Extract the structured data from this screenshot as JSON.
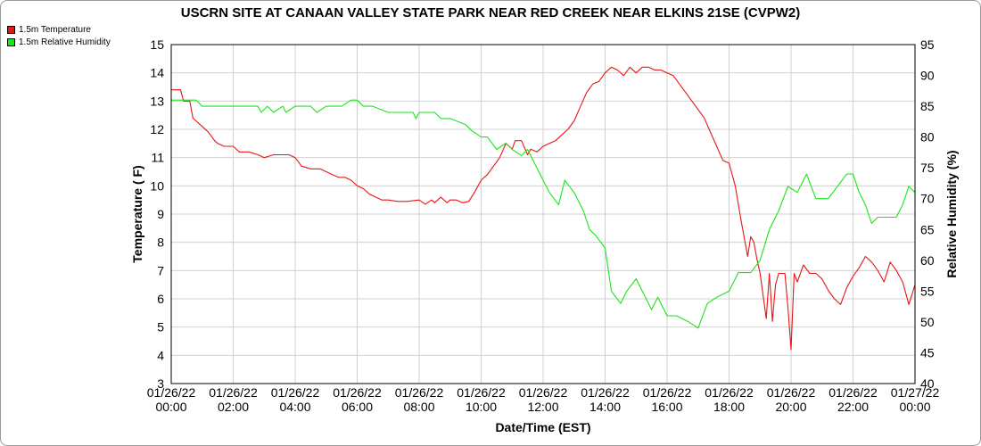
{
  "chart_data": {
    "type": "line",
    "title": "USCRN SITE AT CANAAN VALLEY STATE PARK NEAR RED CREEK NEAR ELKINS 21SE (CVPW2)",
    "xlabel": "Date/Time (EST)",
    "ylabel_left": "Temperature ( F)",
    "ylabel_right": "Relative Humidity (%)",
    "ylim_left": [
      3,
      15
    ],
    "ylim_right": [
      40,
      95
    ],
    "xlim": [
      0,
      24
    ],
    "legend_position": "top-left",
    "grid": true,
    "yticks_left": [
      "3",
      "4",
      "5",
      "6",
      "7",
      "8",
      "9",
      "10",
      "11",
      "12",
      "13",
      "14",
      "15"
    ],
    "yticks_right": [
      "40",
      "45",
      "50",
      "55",
      "60",
      "65",
      "70",
      "75",
      "80",
      "85",
      "90",
      "95"
    ],
    "xticks": [
      {
        "date": "01/26/22",
        "time": "00:00"
      },
      {
        "date": "01/26/22",
        "time": "02:00"
      },
      {
        "date": "01/26/22",
        "time": "04:00"
      },
      {
        "date": "01/26/22",
        "time": "06:00"
      },
      {
        "date": "01/26/22",
        "time": "08:00"
      },
      {
        "date": "01/26/22",
        "time": "10:00"
      },
      {
        "date": "01/26/22",
        "time": "12:00"
      },
      {
        "date": "01/26/22",
        "time": "14:00"
      },
      {
        "date": "01/26/22",
        "time": "16:00"
      },
      {
        "date": "01/26/22",
        "time": "18:00"
      },
      {
        "date": "01/26/22",
        "time": "20:00"
      },
      {
        "date": "01/26/22",
        "time": "22:00"
      },
      {
        "date": "01/27/22",
        "time": "00:00"
      }
    ],
    "series": [
      {
        "name": "1.5m Temperature",
        "color": "#e81515",
        "axis": "left",
        "x": [
          0,
          0.3,
          0.4,
          0.6,
          0.7,
          0.8,
          1.0,
          1.2,
          1.4,
          1.5,
          1.7,
          2.0,
          2.2,
          2.5,
          2.8,
          3.0,
          3.3,
          3.6,
          3.8,
          4.0,
          4.2,
          4.5,
          4.8,
          5.0,
          5.2,
          5.4,
          5.6,
          5.8,
          6.0,
          6.2,
          6.4,
          6.6,
          6.8,
          7.0,
          7.3,
          7.6,
          8.0,
          8.2,
          8.4,
          8.5,
          8.7,
          8.9,
          9.0,
          9.2,
          9.4,
          9.6,
          9.8,
          10.0,
          10.2,
          10.4,
          10.6,
          10.8,
          11.0,
          11.1,
          11.3,
          11.5,
          11.6,
          11.8,
          12.0,
          12.2,
          12.4,
          12.6,
          12.8,
          13.0,
          13.2,
          13.4,
          13.6,
          13.8,
          14.0,
          14.2,
          14.4,
          14.6,
          14.8,
          15.0,
          15.2,
          15.4,
          15.6,
          15.8,
          16.0,
          16.2,
          16.4,
          16.6,
          16.8,
          17.0,
          17.2,
          17.4,
          17.6,
          17.8,
          18.0,
          18.2,
          18.4,
          18.6,
          18.7,
          18.8,
          18.9,
          19.0,
          19.2,
          19.3,
          19.4,
          19.5,
          19.6,
          19.8,
          19.9,
          20.0,
          20.1,
          20.2,
          20.4,
          20.6,
          20.8,
          21.0,
          21.2,
          21.4,
          21.6,
          21.8,
          22.0,
          22.2,
          22.4,
          22.6,
          22.8,
          23.0,
          23.2,
          23.4,
          23.6,
          23.8,
          24.0
        ],
        "y": [
          13.4,
          13.4,
          13.0,
          13.0,
          12.4,
          12.3,
          12.1,
          11.9,
          11.6,
          11.5,
          11.4,
          11.4,
          11.2,
          11.2,
          11.1,
          11.0,
          11.1,
          11.1,
          11.1,
          11.0,
          10.7,
          10.6,
          10.6,
          10.5,
          10.4,
          10.3,
          10.3,
          10.2,
          10.0,
          9.9,
          9.7,
          9.6,
          9.5,
          9.5,
          9.45,
          9.45,
          9.5,
          9.35,
          9.5,
          9.4,
          9.6,
          9.4,
          9.5,
          9.5,
          9.4,
          9.45,
          9.8,
          10.2,
          10.4,
          10.7,
          11.0,
          11.5,
          11.3,
          11.6,
          11.6,
          11.1,
          11.3,
          11.2,
          11.4,
          11.5,
          11.6,
          11.8,
          12.0,
          12.3,
          12.8,
          13.3,
          13.6,
          13.7,
          14.0,
          14.2,
          14.1,
          13.9,
          14.2,
          14.0,
          14.2,
          14.2,
          14.1,
          14.1,
          14.0,
          13.9,
          13.6,
          13.3,
          13.0,
          12.7,
          12.4,
          11.9,
          11.4,
          10.9,
          10.8,
          10.0,
          8.7,
          7.5,
          8.2,
          8.0,
          7.4,
          6.9,
          5.3,
          6.9,
          5.2,
          6.5,
          6.9,
          6.9,
          5.7,
          4.2,
          6.9,
          6.6,
          7.2,
          6.9,
          6.9,
          6.7,
          6.3,
          6.0,
          5.8,
          6.4,
          6.8,
          7.1,
          7.5,
          7.3,
          7.0,
          6.6,
          7.3,
          7.0,
          6.6,
          5.8,
          6.5
        ]
      },
      {
        "name": "1.5m Relative Humidity",
        "color": "#19e619",
        "axis": "right",
        "x": [
          0,
          0.8,
          1.0,
          2.0,
          2.8,
          2.9,
          3.1,
          3.3,
          3.6,
          3.7,
          4.0,
          4.5,
          4.7,
          5.0,
          5.5,
          5.8,
          6.0,
          6.2,
          6.5,
          7.0,
          7.5,
          7.8,
          7.9,
          8.0,
          8.5,
          8.7,
          9.0,
          9.5,
          9.7,
          10.0,
          10.2,
          10.5,
          10.8,
          11.0,
          11.3,
          11.5,
          11.8,
          12.0,
          12.2,
          12.5,
          12.7,
          13.0,
          13.3,
          13.5,
          13.7,
          14.0,
          14.2,
          14.5,
          14.7,
          15.0,
          15.2,
          15.4,
          15.5,
          15.7,
          16.0,
          16.3,
          16.7,
          17.0,
          17.3,
          17.6,
          18.0,
          18.3,
          18.7,
          19.0,
          19.3,
          19.6,
          19.9,
          20.2,
          20.5,
          20.8,
          21.2,
          21.5,
          21.8,
          22.0,
          22.2,
          22.4,
          22.6,
          22.8,
          23.0,
          23.2,
          23.4,
          23.6,
          23.8,
          24.0
        ],
        "y": [
          86,
          86,
          85,
          85,
          85,
          84,
          85,
          84,
          85,
          84,
          85,
          85,
          84,
          85,
          85,
          86,
          86,
          85,
          85,
          84,
          84,
          84,
          83,
          84,
          84,
          83,
          83,
          82,
          81,
          80,
          80,
          78,
          79,
          78,
          77,
          78,
          75,
          73,
          71,
          69,
          73,
          71,
          68,
          65,
          64,
          62,
          55,
          53,
          55,
          57,
          55,
          53,
          52,
          54,
          51,
          51,
          50,
          49,
          53,
          54,
          55,
          58,
          58,
          60,
          65,
          68,
          72,
          71,
          74,
          70,
          70,
          72,
          74,
          74,
          71,
          69,
          66,
          67,
          67,
          67,
          67,
          69,
          72,
          71
        ]
      }
    ]
  }
}
